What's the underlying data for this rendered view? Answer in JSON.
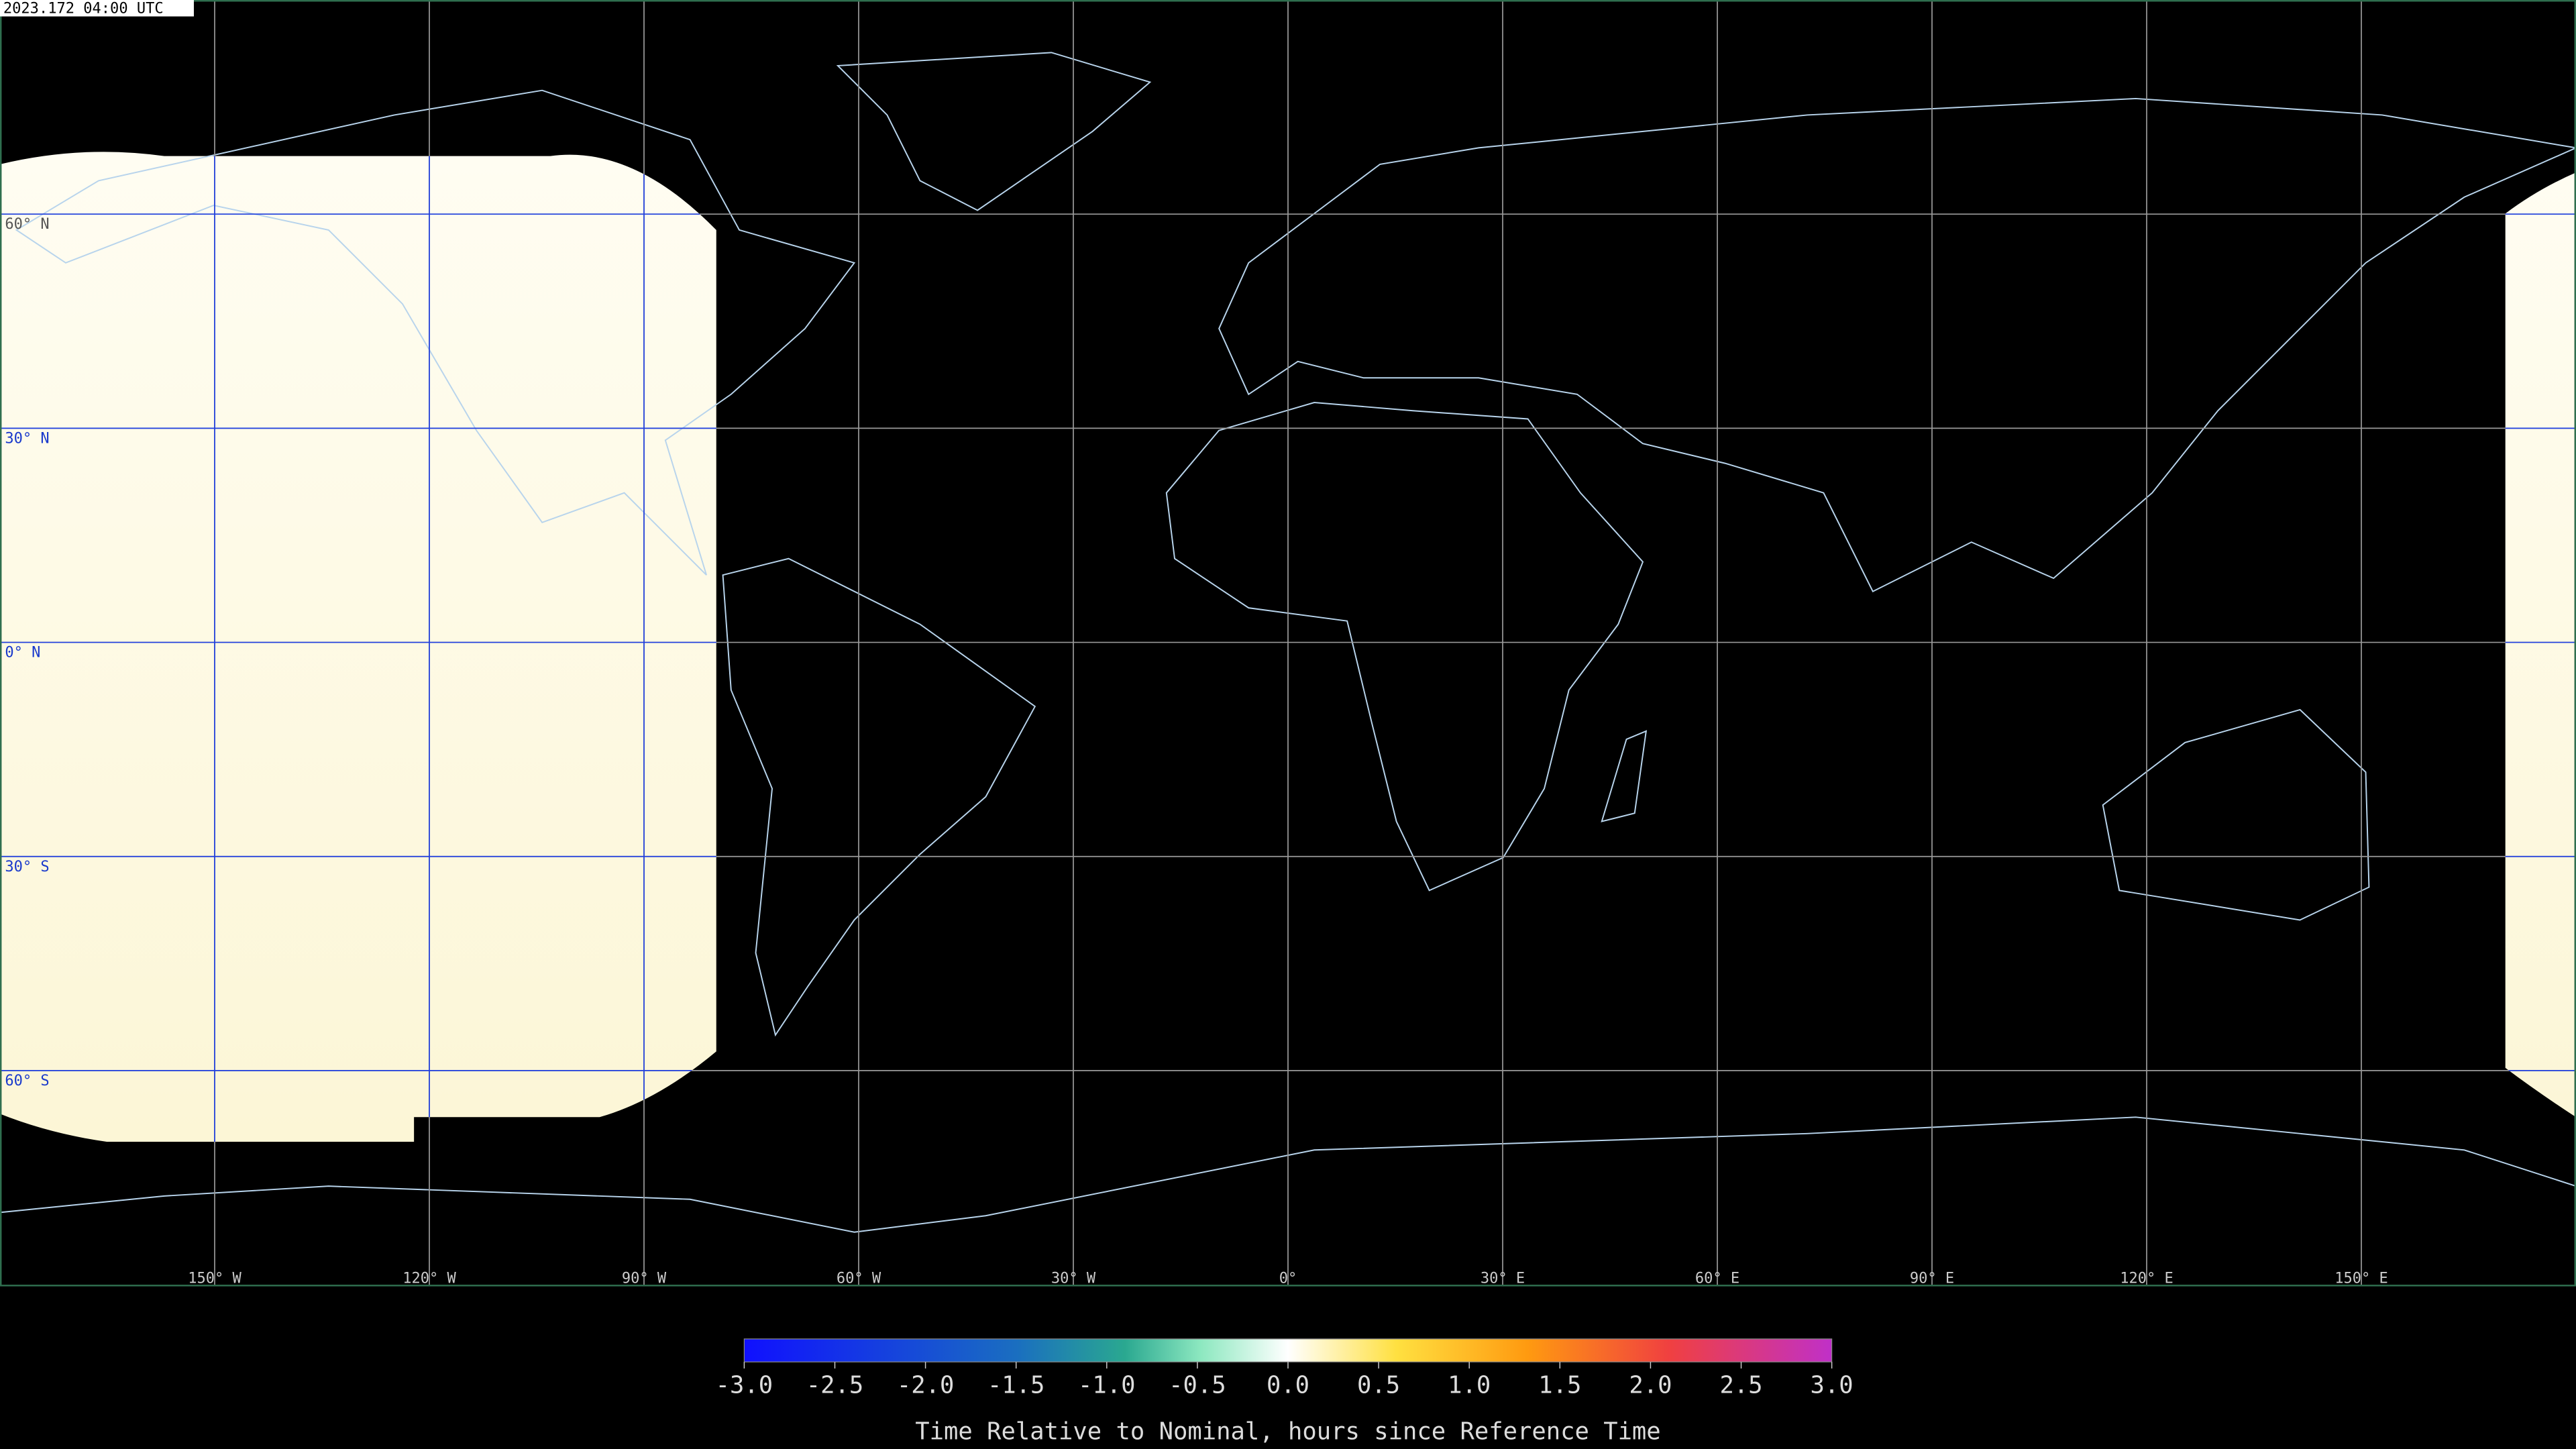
{
  "header": {
    "timestamp": "2023.172 04:00 UTC"
  },
  "map": {
    "lat_labels": [
      "60° N",
      "30° N",
      "0° N",
      "30° S",
      "60° S"
    ],
    "lon_labels": [
      "150° W",
      "120° W",
      "90° W",
      "60° W",
      "30° W",
      "0°",
      "30° E",
      "60° E",
      "90° E",
      "120° E",
      "150° E"
    ]
  },
  "colorbar": {
    "ticks": [
      {
        "value": -3,
        "label": "-3.0"
      },
      -2.5,
      {
        "value": -2,
        "label": "-2.0"
      },
      -1.5,
      {
        "value": -1,
        "label": "-1.0"
      },
      -0.5,
      {
        "value": 0,
        "label": "0.0"
      },
      0.5,
      {
        "value": 1,
        "label": "1.0"
      },
      1.5,
      {
        "value": 2,
        "label": "2.0"
      },
      2.5,
      {
        "value": 3,
        "label": "3.0"
      }
    ],
    "label": "Time Relative to Nominal, hours since Reference Time"
  }
}
